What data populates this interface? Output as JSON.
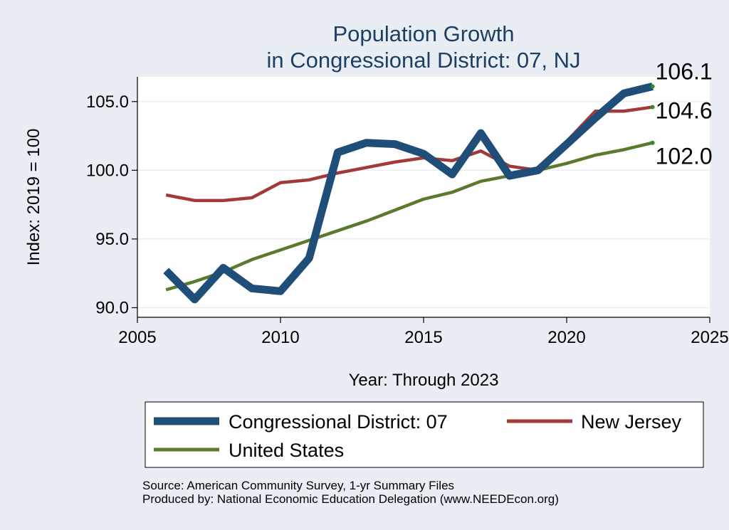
{
  "chart_data": {
    "type": "line",
    "title": [
      "Population Growth",
      "in Congressional District: 07, NJ"
    ],
    "xlabel": "Year: Through 2023",
    "ylabel": "Index: 2019 = 100",
    "xlim": [
      2005,
      2025
    ],
    "ylim": [
      89.3,
      106.8
    ],
    "xticks": [
      2005,
      2010,
      2015,
      2020,
      2025
    ],
    "xtick_labels": [
      "2005",
      "2010",
      "2015",
      "2020",
      "2025"
    ],
    "yticks": [
      90,
      95,
      100,
      105
    ],
    "ytick_labels": [
      "90.0",
      "95.0",
      "100.0",
      "105.0"
    ],
    "grid": true,
    "x": [
      2006,
      2007,
      2008,
      2009,
      2010,
      2011,
      2012,
      2013,
      2014,
      2015,
      2016,
      2017,
      2018,
      2019,
      2020,
      2021,
      2022,
      2023
    ],
    "series": [
      {
        "name": "Congressional District: 07",
        "color": "#1f4e79",
        "values": [
          92.7,
          90.6,
          92.9,
          91.4,
          91.2,
          93.6,
          101.3,
          102.0,
          101.9,
          101.2,
          99.7,
          102.7,
          99.6,
          100.0,
          101.9,
          103.8,
          105.6,
          106.1
        ],
        "end_label": "106.1"
      },
      {
        "name": "New Jersey",
        "color": "#a33a3a",
        "values": [
          98.2,
          97.8,
          97.8,
          98.0,
          99.1,
          99.3,
          99.8,
          100.2,
          100.6,
          100.9,
          100.7,
          101.4,
          100.3,
          100.0,
          102.1,
          104.3,
          104.3,
          104.6
        ],
        "end_label": "104.6"
      },
      {
        "name": "United States",
        "color": "#5a7a2e",
        "values": [
          91.3,
          91.9,
          92.6,
          93.5,
          94.2,
          94.9,
          95.6,
          96.3,
          97.1,
          97.9,
          98.4,
          99.2,
          99.6,
          100.0,
          100.5,
          101.1,
          101.5,
          102.0
        ],
        "end_label": "102.0"
      }
    ],
    "legend_position": "bottom",
    "legend_labels": [
      "Congressional District: 07",
      "New Jersey",
      "United States"
    ]
  },
  "footer": {
    "source": "Source: American Community Survey, 1-yr Summary Files",
    "produced_by": "Produced by: National Economic Education Delegation (www.NEEDEcon.org)"
  }
}
